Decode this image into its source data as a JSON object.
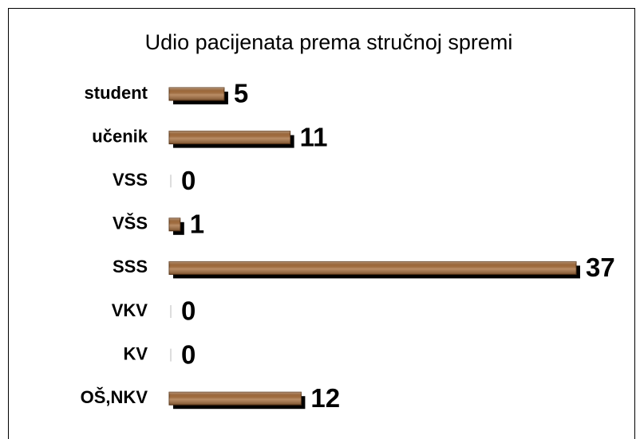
{
  "chart_data": {
    "type": "bar",
    "orientation": "horizontal",
    "title": "Udio pacijenata prema stručnoj spremi",
    "categories": [
      "student",
      "učenik",
      "VSS",
      "VŠS",
      "SSS",
      "VKV",
      "KV",
      "OŠ,NKV"
    ],
    "values": [
      5,
      11,
      0,
      1,
      37,
      0,
      0,
      12
    ],
    "color": "#a8703f"
  }
}
